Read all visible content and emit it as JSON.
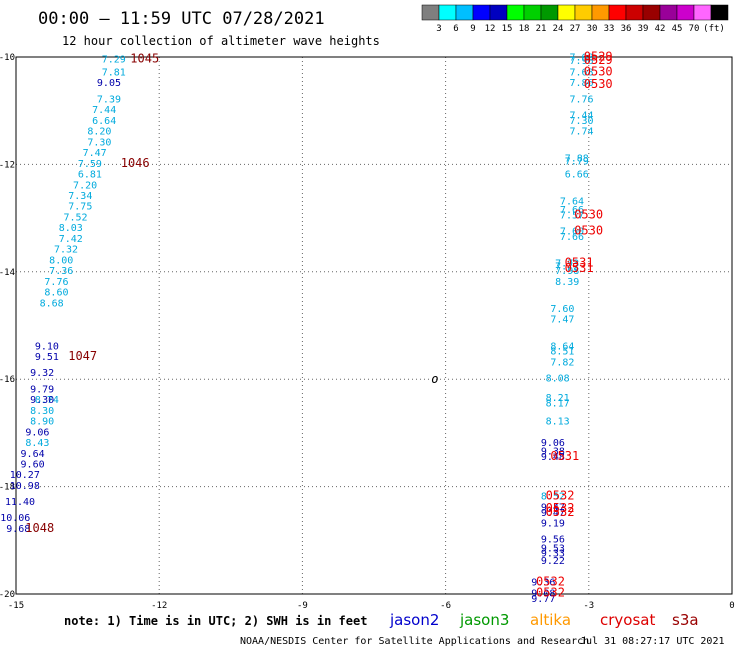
{
  "header": {
    "title": "00:00 – 11:59 UTC 07/28/2021",
    "subtitle": "12 hour collection of altimeter wave heights"
  },
  "colorbar": {
    "colors": [
      "#7f7f7f",
      "#00ffff",
      "#00bfff",
      "#0000ff",
      "#0000c0",
      "#00ff00",
      "#00d000",
      "#009900",
      "#ffff00",
      "#ffcc00",
      "#ff9900",
      "#ff0000",
      "#cc0000",
      "#990000",
      "#990099",
      "#cc00cc",
      "#ff66ff",
      "#000000"
    ],
    "labels": [
      "3",
      "6",
      "9",
      "12",
      "15",
      "18",
      "21",
      "24",
      "27",
      "30",
      "33",
      "36",
      "39",
      "42",
      "45",
      "70"
    ],
    "unit": "(ft)"
  },
  "note": "note: 1) Time is in UTC; 2) SWH is in feet",
  "legend": [
    {
      "name": "jason2",
      "color": "#0000cc"
    },
    {
      "name": "jason3",
      "color": "#009900"
    },
    {
      "name": "altika",
      "color": "#ff9900"
    },
    {
      "name": "cryosat",
      "color": "#dd0000"
    },
    {
      "name": "s3a",
      "color": "#990000"
    }
  ],
  "footer": {
    "credit": "NOAA/NESDIS Center for Satellite Applications and Research",
    "timestamp": "Jul 31 08:27:17 UTC 2021"
  },
  "chart_data": {
    "type": "scatter",
    "title": "00:00 – 11:59 UTC 07/28/2021",
    "xlim": [
      -15,
      0
    ],
    "ylim": [
      -20,
      -10
    ],
    "xticks": [
      -15,
      -12,
      -9,
      -6,
      -3,
      0
    ],
    "yticks": [
      -10,
      -12,
      -14,
      -16,
      -18,
      -20
    ],
    "xtick_labels": [
      "-15",
      "-12",
      "-9",
      "-6",
      "-3",
      "0"
    ],
    "ytick_labels": [
      "-10",
      "-12",
      "-14",
      "-16",
      "-18",
      "-20"
    ],
    "grid": true,
    "marker": {
      "x": -6.3,
      "y": -16.0,
      "label": "o"
    },
    "series": [
      {
        "color": "#00aadd",
        "points": [
          {
            "x": -12.7,
            "y": -10.03,
            "v": "7.29"
          },
          {
            "x": -12.7,
            "y": -10.27,
            "v": "7.81"
          },
          {
            "x": -12.8,
            "y": -10.77,
            "v": "7.39"
          },
          {
            "x": -12.9,
            "y": -10.97,
            "v": "7.44"
          },
          {
            "x": -12.9,
            "y": -11.17,
            "v": "6.64"
          },
          {
            "x": -13.0,
            "y": -11.37,
            "v": "8.20"
          },
          {
            "x": -13.0,
            "y": -11.57,
            "v": "7.30"
          },
          {
            "x": -13.1,
            "y": -11.77,
            "v": "7.47"
          },
          {
            "x": -13.2,
            "y": -11.97,
            "v": "7.59"
          },
          {
            "x": -13.2,
            "y": -12.17,
            "v": "6.81"
          },
          {
            "x": -13.3,
            "y": -12.37,
            "v": "7.20"
          },
          {
            "x": -13.4,
            "y": -12.57,
            "v": "7.34"
          },
          {
            "x": -13.4,
            "y": -12.77,
            "v": "7.75"
          },
          {
            "x": -13.5,
            "y": -12.97,
            "v": "7.52"
          },
          {
            "x": -13.6,
            "y": -13.17,
            "v": "8.03"
          },
          {
            "x": -13.6,
            "y": -13.37,
            "v": "7.42"
          },
          {
            "x": -13.7,
            "y": -13.57,
            "v": "7.32"
          },
          {
            "x": -13.8,
            "y": -13.77,
            "v": "8.00"
          },
          {
            "x": -13.8,
            "y": -13.97,
            "v": "7.36"
          },
          {
            "x": -13.9,
            "y": -14.17,
            "v": "7.76"
          },
          {
            "x": -13.9,
            "y": -14.37,
            "v": "8.60"
          },
          {
            "x": -14.0,
            "y": -14.57,
            "v": "8.68"
          },
          {
            "x": -14.1,
            "y": -16.37,
            "v": "8.74"
          },
          {
            "x": -14.2,
            "y": -16.57,
            "v": "8.30"
          },
          {
            "x": -14.2,
            "y": -16.77,
            "v": "8.90"
          },
          {
            "x": -14.3,
            "y": -17.17,
            "v": "8.43"
          },
          {
            "x": -2.9,
            "y": -9.99,
            "v": "7.68"
          },
          {
            "x": -2.9,
            "y": -10.06,
            "v": "7.96"
          },
          {
            "x": -2.9,
            "y": -10.27,
            "v": "7.68"
          },
          {
            "x": -2.9,
            "y": -10.47,
            "v": "7.86"
          },
          {
            "x": -2.9,
            "y": -10.77,
            "v": "7.76"
          },
          {
            "x": -2.9,
            "y": -11.07,
            "v": "7.44"
          },
          {
            "x": -2.9,
            "y": -11.17,
            "v": "7.30"
          },
          {
            "x": -2.9,
            "y": -11.37,
            "v": "7.74"
          },
          {
            "x": -3.0,
            "y": -11.87,
            "v": "7.88"
          },
          {
            "x": -3.0,
            "y": -11.93,
            "v": "7.79"
          },
          {
            "x": -3.0,
            "y": -12.17,
            "v": "6.66"
          },
          {
            "x": -3.1,
            "y": -12.67,
            "v": "7.64"
          },
          {
            "x": -3.1,
            "y": -12.83,
            "v": "7.66"
          },
          {
            "x": -3.1,
            "y": -12.93,
            "v": "7.57"
          },
          {
            "x": -3.1,
            "y": -13.23,
            "v": "7.60"
          },
          {
            "x": -3.1,
            "y": -13.33,
            "v": "7.66"
          },
          {
            "x": -3.2,
            "y": -13.83,
            "v": "7.73"
          },
          {
            "x": -3.2,
            "y": -13.88,
            "v": "7.72"
          },
          {
            "x": -3.2,
            "y": -13.97,
            "v": "7.98"
          },
          {
            "x": -3.2,
            "y": -14.17,
            "v": "8.39"
          },
          {
            "x": -3.3,
            "y": -14.67,
            "v": "7.60"
          },
          {
            "x": -3.3,
            "y": -14.87,
            "v": "7.47"
          },
          {
            "x": -3.3,
            "y": -15.37,
            "v": "8.64"
          },
          {
            "x": -3.3,
            "y": -15.47,
            "v": "8.51"
          },
          {
            "x": -3.3,
            "y": -15.67,
            "v": "7.82"
          },
          {
            "x": -3.4,
            "y": -15.97,
            "v": "8.08"
          },
          {
            "x": -3.4,
            "y": -16.33,
            "v": "8.21"
          },
          {
            "x": -3.4,
            "y": -16.43,
            "v": "8.17"
          },
          {
            "x": -3.4,
            "y": -16.77,
            "v": "8.13"
          },
          {
            "x": -3.5,
            "y": -18.17,
            "v": "8.52"
          }
        ]
      },
      {
        "color": "#0000aa",
        "points": [
          {
            "x": -12.8,
            "y": -10.47,
            "v": "9.05"
          },
          {
            "x": -14.1,
            "y": -15.37,
            "v": "9.10"
          },
          {
            "x": -14.1,
            "y": -15.57,
            "v": "9.51"
          },
          {
            "x": -14.2,
            "y": -15.87,
            "v": "9.32"
          },
          {
            "x": -14.2,
            "y": -16.17,
            "v": "9.79"
          },
          {
            "x": -14.2,
            "y": -16.37,
            "v": "9.30"
          },
          {
            "x": -14.3,
            "y": -16.97,
            "v": "9.06"
          },
          {
            "x": -14.4,
            "y": -17.37,
            "v": "9.64"
          },
          {
            "x": -14.4,
            "y": -17.57,
            "v": "9.60"
          },
          {
            "x": -14.5,
            "y": -17.77,
            "v": "10.27"
          },
          {
            "x": -14.5,
            "y": -17.97,
            "v": "10.98"
          },
          {
            "x": -14.6,
            "y": -18.27,
            "v": "11.40"
          },
          {
            "x": -14.7,
            "y": -18.57,
            "v": "10.06"
          },
          {
            "x": -14.7,
            "y": -18.77,
            "v": "9.68"
          },
          {
            "x": -3.5,
            "y": -17.17,
            "v": "9.06"
          },
          {
            "x": -3.5,
            "y": -17.33,
            "v": "9.38"
          },
          {
            "x": -3.5,
            "y": -17.43,
            "v": "9.48"
          },
          {
            "x": -3.5,
            "y": -18.37,
            "v": "9.47"
          },
          {
            "x": -3.5,
            "y": -18.47,
            "v": "9.47"
          },
          {
            "x": -3.5,
            "y": -18.67,
            "v": "9.19"
          },
          {
            "x": -3.5,
            "y": -18.97,
            "v": "9.56"
          },
          {
            "x": -3.5,
            "y": -19.13,
            "v": "9.53"
          },
          {
            "x": -3.5,
            "y": -19.23,
            "v": "9.33"
          },
          {
            "x": -3.5,
            "y": -19.37,
            "v": "9.22"
          },
          {
            "x": -3.7,
            "y": -19.77,
            "v": "9.36"
          },
          {
            "x": -3.7,
            "y": -19.97,
            "v": "9.08"
          },
          {
            "x": -3.7,
            "y": -20.07,
            "v": "9.77"
          }
        ]
      },
      {
        "color": "#880000",
        "points": [
          {
            "x": -12.0,
            "y": -10.03,
            "v": "1045"
          },
          {
            "x": -12.2,
            "y": -11.97,
            "v": "1046"
          },
          {
            "x": -13.3,
            "y": -15.57,
            "v": "1047"
          },
          {
            "x": -14.2,
            "y": -18.77,
            "v": "1048"
          }
        ]
      },
      {
        "color": "#ee0000",
        "points": [
          {
            "x": -2.5,
            "y": -9.99,
            "v": "0529"
          },
          {
            "x": -2.5,
            "y": -10.06,
            "v": "0529"
          },
          {
            "x": -2.5,
            "y": -10.27,
            "v": "0530"
          },
          {
            "x": -2.5,
            "y": -10.5,
            "v": "0530"
          },
          {
            "x": -2.7,
            "y": -12.93,
            "v": "0530"
          },
          {
            "x": -2.7,
            "y": -13.23,
            "v": "0530"
          },
          {
            "x": -2.9,
            "y": -13.83,
            "v": "0531"
          },
          {
            "x": -2.9,
            "y": -13.93,
            "v": "0531"
          },
          {
            "x": -3.2,
            "y": -17.43,
            "v": "0531"
          },
          {
            "x": -3.3,
            "y": -18.17,
            "v": "0532"
          },
          {
            "x": -3.3,
            "y": -18.4,
            "v": "0532"
          },
          {
            "x": -3.3,
            "y": -18.47,
            "v": "0532"
          },
          {
            "x": -3.5,
            "y": -19.77,
            "v": "0532"
          },
          {
            "x": -3.5,
            "y": -19.97,
            "v": "0532"
          }
        ]
      }
    ]
  }
}
